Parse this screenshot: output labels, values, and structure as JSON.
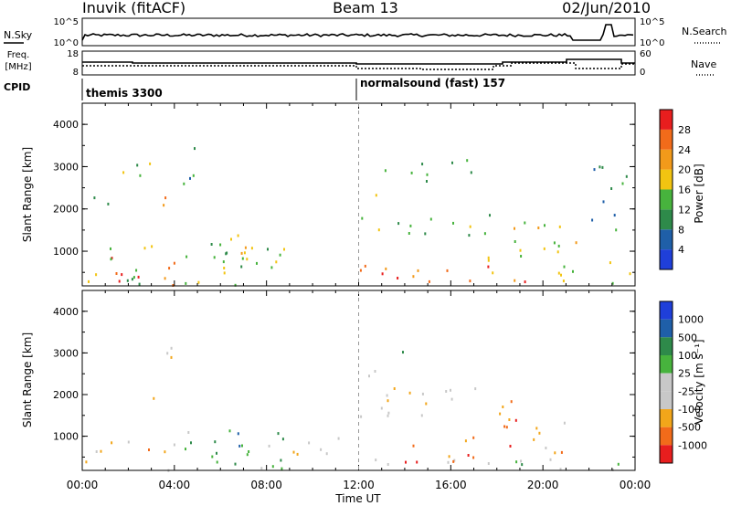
{
  "header": {
    "station": "Inuvik (fitACF)",
    "beam": "Beam 13",
    "date": "02/Jun/2010"
  },
  "top_panels": {
    "nsky_label": "N.Sky",
    "nsky_ticks": [
      "10^5",
      "10^0"
    ],
    "nsearch_label": "N.Search",
    "nsearch_ticks": [
      "10^5",
      "10^0"
    ],
    "freq_label": "Freq.",
    "freq_unit": "[MHz]",
    "freq_ticks": [
      "18",
      "8"
    ],
    "nave_label": "Nave",
    "nave_ticks": [
      "60",
      "0"
    ],
    "cpid_label": "CPID",
    "cpid_segments": [
      "themis 3300",
      "normalsound (fast) 157"
    ]
  },
  "colors": {
    "power": [
      "#1f3fd9",
      "#1f5fa8",
      "#2e8a4a",
      "#47b33d",
      "#f2c411",
      "#f29a1a",
      "#f26b1a",
      "#e81e1e"
    ],
    "velocity": [
      "#e81e1e",
      "#f26b1a",
      "#f2a61a",
      "#c8c8c8",
      "#c8c8c8",
      "#47b33d",
      "#2e8a4a",
      "#1f5fa8",
      "#1f3fd9"
    ],
    "tick": "#000000"
  },
  "chart_data": [
    {
      "type": "heatmap",
      "title": "Power",
      "ylabel": "Slant Range [km]",
      "ylim": [
        180,
        4500
      ],
      "yticks": [
        "1000",
        "2000",
        "3000",
        "4000"
      ],
      "xlabel": "Time UT",
      "xticks": [
        "00:00",
        "04:00",
        "08:00",
        "12:00",
        "16:00",
        "20:00",
        "00:00"
      ],
      "colorbar_label": "Power [dB]",
      "colorbar_ticks": [
        "4",
        "8",
        "12",
        "16",
        "20",
        "24",
        "28"
      ],
      "blobs": [
        {
          "t0": 0.1,
          "t1": 4.0,
          "r0": 200,
          "r1": 900,
          "level": 6
        },
        {
          "t0": 0.2,
          "t1": 8.8,
          "r0": 200,
          "r1": 1300,
          "level": 3
        },
        {
          "t0": 0.4,
          "t1": 1.1,
          "r0": 1500,
          "r1": 2500,
          "level": 2
        },
        {
          "t0": 1.5,
          "t1": 3.6,
          "r0": 2800,
          "r1": 3400,
          "level": 3
        },
        {
          "t0": 2.2,
          "t1": 3.6,
          "r0": 1900,
          "r1": 2400,
          "level": 5
        },
        {
          "t0": 4.3,
          "t1": 5.6,
          "r0": 2600,
          "r1": 3600,
          "level": 2
        },
        {
          "t0": 6.0,
          "t1": 7.5,
          "r0": 300,
          "r1": 1500,
          "level": 5
        },
        {
          "t0": 12.1,
          "t1": 13.0,
          "r0": 1700,
          "r1": 2500,
          "level": 4
        },
        {
          "t0": 12.5,
          "t1": 18.0,
          "r0": 1400,
          "r1": 2000,
          "level": 3
        },
        {
          "t0": 13.0,
          "t1": 17.0,
          "r0": 2600,
          "r1": 3200,
          "level": 2
        },
        {
          "t0": 12.0,
          "t1": 20.0,
          "r0": 200,
          "r1": 700,
          "level": 6
        },
        {
          "t0": 17.5,
          "t1": 21.5,
          "r0": 300,
          "r1": 1900,
          "level": 4
        },
        {
          "t0": 21.8,
          "t1": 23.6,
          "r0": 1500,
          "r1": 3200,
          "level": 2
        },
        {
          "t0": 22.5,
          "t1": 24.0,
          "r0": 200,
          "r1": 800,
          "level": 3
        }
      ]
    },
    {
      "type": "heatmap",
      "title": "Velocity",
      "ylabel": "Slant Range [km]",
      "ylim": [
        180,
        4500
      ],
      "yticks": [
        "1000",
        "2000",
        "3000",
        "4000"
      ],
      "xlabel": "Time UT",
      "xticks": [
        "00:00",
        "04:00",
        "08:00",
        "12:00",
        "16:00",
        "20:00",
        "00:00"
      ],
      "colorbar_label": "Velocity [m s⁻¹]",
      "colorbar_ticks": [
        "1000",
        "500",
        "100",
        "25",
        "-25",
        "-100",
        "-500",
        "-1000"
      ],
      "blobs": [
        {
          "t0": 0.1,
          "t1": 4.0,
          "r0": 200,
          "r1": 900,
          "level": 2
        },
        {
          "t0": 4.0,
          "t1": 9.0,
          "r0": 200,
          "r1": 1200,
          "level": 5
        },
        {
          "t0": 2.5,
          "t1": 4.0,
          "r0": 2700,
          "r1": 3300,
          "level": 3
        },
        {
          "t0": 3.0,
          "t1": 3.8,
          "r0": 1900,
          "r1": 2400,
          "level": 3
        },
        {
          "t0": 6.0,
          "t1": 7.0,
          "r0": 500,
          "r1": 1500,
          "level": 6
        },
        {
          "t0": 12.0,
          "t1": 17.5,
          "r0": 1500,
          "r1": 2300,
          "level": 3
        },
        {
          "t0": 12.2,
          "t1": 13.0,
          "r0": 2300,
          "r1": 2900,
          "level": 3
        },
        {
          "t0": 13.0,
          "t1": 14.0,
          "r0": 3000,
          "r1": 3300,
          "level": 6
        },
        {
          "t0": 12.0,
          "t1": 24.0,
          "r0": 200,
          "r1": 500,
          "level": 5
        },
        {
          "t0": 14.0,
          "t1": 18.0,
          "r0": 400,
          "r1": 1100,
          "level": 1
        },
        {
          "t0": 18.0,
          "t1": 20.0,
          "r0": 700,
          "r1": 2000,
          "level": 1
        },
        {
          "t0": 19.5,
          "t1": 21.0,
          "r0": 400,
          "r1": 1600,
          "level": 2
        },
        {
          "t0": 8.0,
          "t1": 12.0,
          "r0": 500,
          "r1": 1000,
          "level": 3
        }
      ]
    }
  ]
}
